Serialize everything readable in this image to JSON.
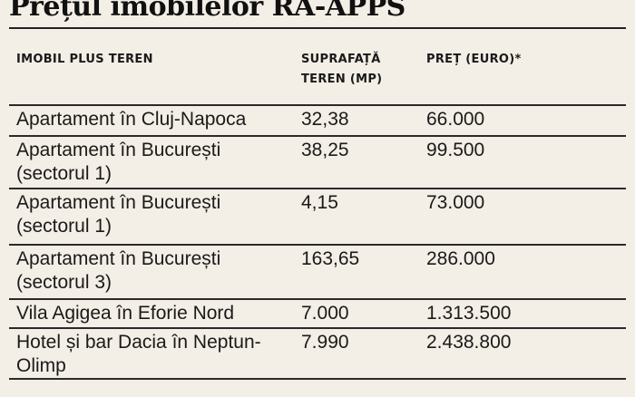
{
  "title": "Prețul imobilelor RA-APPS",
  "headers": {
    "col1": "IMOBIL PLUS TEREN",
    "col2_line1": "SUPRAFAȚĂ",
    "col2_line2": "TEREN (MP)",
    "col3": "PREȚ (EURO)*"
  },
  "rows": [
    {
      "property": "Apartament în Cluj-Napoca",
      "area": "32,38",
      "price": "66.000"
    },
    {
      "property": "Apartament în București (sectorul 1)",
      "area": "38,25",
      "price": "99.500"
    },
    {
      "property": "Apartament în București (sectorul 1)",
      "area": "4,15",
      "price": "73.000"
    },
    {
      "property": "Apartament în București (sectorul 3)",
      "area": "163,65",
      "price": "286.000"
    },
    {
      "property": "Vila Agigea în Eforie Nord",
      "area": "7.000",
      "price": "1.313.500"
    },
    {
      "property": "Hotel și bar Dacia în Neptun-Olimp",
      "area": "7.990",
      "price": "2.438.800"
    }
  ]
}
